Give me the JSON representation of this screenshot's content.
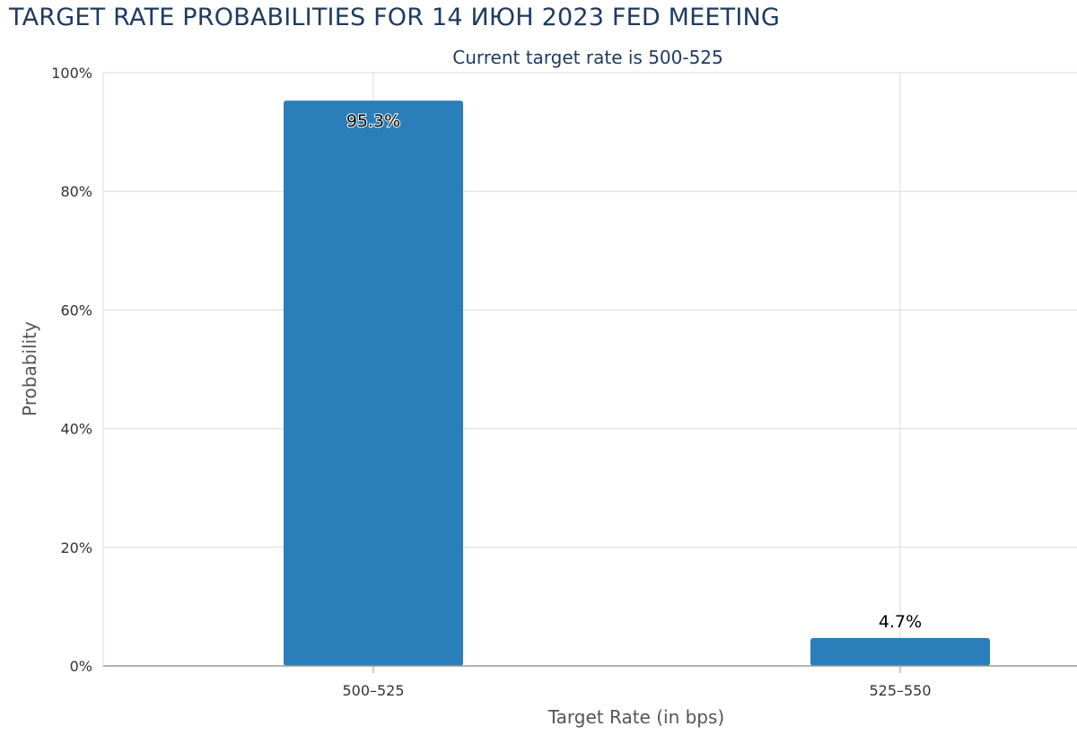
{
  "title": "TARGET RATE PROBABILITIES FOR 14 ИЮН 2023 FED MEETING",
  "subtitle": "Current target rate is 500-525",
  "colors": {
    "bar": "#2a7fba",
    "grid": "#dcdcdc",
    "axis": "#999999",
    "title": "#1f3a5f"
  },
  "chart_data": {
    "type": "bar",
    "title": "TARGET RATE PROBABILITIES FOR 14 ИЮН 2023 FED MEETING",
    "subtitle": "Current target rate is 500-525",
    "categories": [
      "500–525",
      "525–550"
    ],
    "values": [
      95.3,
      4.7
    ],
    "data_labels": [
      "95.3%",
      "4.7%"
    ],
    "xlabel": "Target Rate (in bps)",
    "ylabel": "Probability",
    "ylim": [
      0,
      100
    ],
    "yticks": [
      0,
      20,
      40,
      60,
      80,
      100
    ],
    "ytick_labels": [
      "0%",
      "20%",
      "40%",
      "60%",
      "80%",
      "100%"
    ],
    "grid": true,
    "legend": "none"
  }
}
